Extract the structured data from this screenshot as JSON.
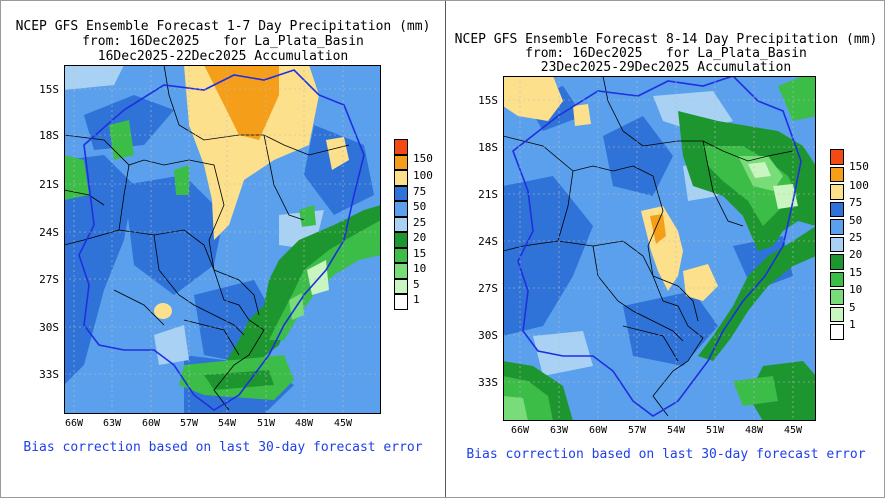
{
  "colors": {
    "c1": "#ffffff",
    "c5": "#c9f5c0",
    "c10": "#78dc78",
    "c15": "#3cbd48",
    "c20": "#1e9630",
    "c25": "#a8d1f4",
    "c50": "#5aa0ec",
    "c75": "#2f73d8",
    "c100": "#fde08c",
    "c150": "#f59e1a",
    "c200": "#f24a14",
    "border": "#000000",
    "basin": "#1f2fe0",
    "bias_text": "#2040e8"
  },
  "left": {
    "title_line1": "NCEP GFS Ensemble Forecast 1-7 Day Precipitation (mm)",
    "title_line2": "from: 16Dec2025   for La_Plata_Basin",
    "title_line3": "16Dec2025-22Dec2025 Accumulation",
    "lat_labels": [
      "15S",
      "18S",
      "21S",
      "24S",
      "27S",
      "30S",
      "33S"
    ],
    "lon_labels": [
      "66W",
      "63W",
      "60W",
      "57W",
      "54W",
      "51W",
      "48W",
      "45W"
    ],
    "colorbar_labels": [
      "150",
      "100",
      "75",
      "50",
      "25",
      "20",
      "15",
      "10",
      "5",
      "1"
    ],
    "bias_note": "Bias correction based on last 30-day forecast error"
  },
  "right": {
    "title_line1": "NCEP GFS Ensemble Forecast 8-14 Day Precipitation (mm)",
    "title_line2": "from: 16Dec2025   for La_Plata_Basin",
    "title_line3": "23Dec2025-29Dec2025 Accumulation",
    "lat_labels": [
      "15S",
      "18S",
      "21S",
      "24S",
      "27S",
      "30S",
      "33S"
    ],
    "lon_labels": [
      "66W",
      "63W",
      "60W",
      "57W",
      "54W",
      "51W",
      "48W",
      "45W"
    ],
    "colorbar_labels": [
      "150",
      "100",
      "75",
      "50",
      "25",
      "20",
      "15",
      "10",
      "5",
      "1"
    ],
    "bias_note": "Bias correction based on last 30-day forecast error"
  }
}
